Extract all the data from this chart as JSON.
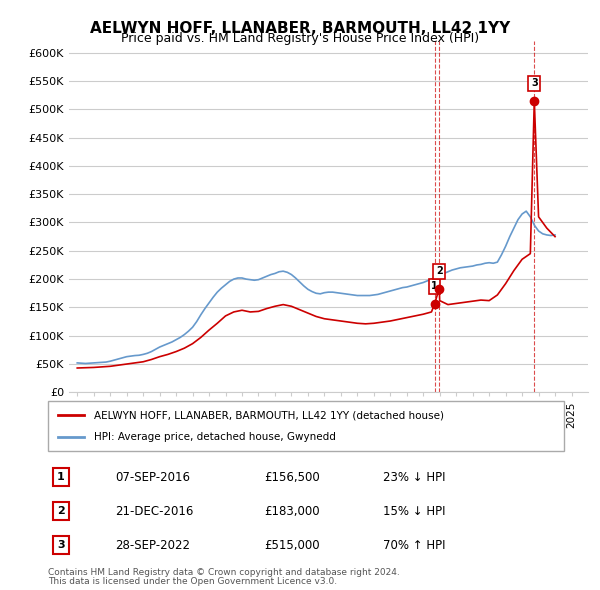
{
  "title": "AELWYN HOFF, LLANABER, BARMOUTH, LL42 1YY",
  "subtitle": "Price paid vs. HM Land Registry's House Price Index (HPI)",
  "ylabel_ticks": [
    "£0",
    "£50K",
    "£100K",
    "£150K",
    "£200K",
    "£250K",
    "£300K",
    "£350K",
    "£400K",
    "£450K",
    "£500K",
    "£550K",
    "£600K"
  ],
  "ytick_values": [
    0,
    50000,
    100000,
    150000,
    200000,
    250000,
    300000,
    350000,
    400000,
    450000,
    500000,
    550000,
    600000
  ],
  "ylim": [
    0,
    620000
  ],
  "xlim_start": 1994.5,
  "xlim_end": 2026.0,
  "sale_marker_color": "#cc0000",
  "hpi_line_color": "#6699cc",
  "background_color": "#ffffff",
  "grid_color": "#cccccc",
  "legend_house": "AELWYN HOFF, LLANABER, BARMOUTH, LL42 1YY (detached house)",
  "legend_hpi": "HPI: Average price, detached house, Gwynedd",
  "transactions": [
    {
      "label": "1",
      "date": "07-SEP-2016",
      "price": 156500,
      "pct": "23%",
      "direction": "↓",
      "year_x": 2016.69
    },
    {
      "label": "2",
      "date": "21-DEC-2016",
      "price": 183000,
      "pct": "15%",
      "direction": "↓",
      "year_x": 2016.97
    },
    {
      "label": "3",
      "date": "28-SEP-2022",
      "price": 515000,
      "pct": "70%",
      "direction": "↑",
      "year_x": 2022.74
    }
  ],
  "footer1": "Contains HM Land Registry data © Crown copyright and database right 2024.",
  "footer2": "This data is licensed under the Open Government Licence v3.0.",
  "hpi_data": {
    "years": [
      1995.0,
      1995.25,
      1995.5,
      1995.75,
      1996.0,
      1996.25,
      1996.5,
      1996.75,
      1997.0,
      1997.25,
      1997.5,
      1997.75,
      1998.0,
      1998.25,
      1998.5,
      1998.75,
      1999.0,
      1999.25,
      1999.5,
      1999.75,
      2000.0,
      2000.25,
      2000.5,
      2000.75,
      2001.0,
      2001.25,
      2001.5,
      2001.75,
      2002.0,
      2002.25,
      2002.5,
      2002.75,
      2003.0,
      2003.25,
      2003.5,
      2003.75,
      2004.0,
      2004.25,
      2004.5,
      2004.75,
      2005.0,
      2005.25,
      2005.5,
      2005.75,
      2006.0,
      2006.25,
      2006.5,
      2006.75,
      2007.0,
      2007.25,
      2007.5,
      2007.75,
      2008.0,
      2008.25,
      2008.5,
      2008.75,
      2009.0,
      2009.25,
      2009.5,
      2009.75,
      2010.0,
      2010.25,
      2010.5,
      2010.75,
      2011.0,
      2011.25,
      2011.5,
      2011.75,
      2012.0,
      2012.25,
      2012.5,
      2012.75,
      2013.0,
      2013.25,
      2013.5,
      2013.75,
      2014.0,
      2014.25,
      2014.5,
      2014.75,
      2015.0,
      2015.25,
      2015.5,
      2015.75,
      2016.0,
      2016.25,
      2016.5,
      2016.75,
      2017.0,
      2017.25,
      2017.5,
      2017.75,
      2018.0,
      2018.25,
      2018.5,
      2018.75,
      2019.0,
      2019.25,
      2019.5,
      2019.75,
      2020.0,
      2020.25,
      2020.5,
      2020.75,
      2021.0,
      2021.25,
      2021.5,
      2021.75,
      2022.0,
      2022.25,
      2022.5,
      2022.75,
      2023.0,
      2023.25,
      2023.5,
      2023.75,
      2024.0
    ],
    "values": [
      52000,
      51500,
      51000,
      51500,
      52000,
      52500,
      53000,
      53500,
      55000,
      57000,
      59000,
      61000,
      63000,
      64000,
      65000,
      65500,
      67000,
      69000,
      72000,
      76000,
      80000,
      83000,
      86000,
      89000,
      93000,
      97000,
      102000,
      108000,
      115000,
      125000,
      137000,
      148000,
      158000,
      168000,
      177000,
      184000,
      190000,
      196000,
      200000,
      202000,
      202000,
      200000,
      199000,
      198000,
      199000,
      202000,
      205000,
      208000,
      210000,
      213000,
      214000,
      212000,
      208000,
      202000,
      195000,
      188000,
      182000,
      178000,
      175000,
      174000,
      176000,
      177000,
      177000,
      176000,
      175000,
      174000,
      173000,
      172000,
      171000,
      171000,
      171000,
      171000,
      172000,
      173000,
      175000,
      177000,
      179000,
      181000,
      183000,
      185000,
      186000,
      188000,
      190000,
      192000,
      194000,
      197000,
      200000,
      203000,
      206000,
      210000,
      213000,
      216000,
      218000,
      220000,
      221000,
      222000,
      223000,
      225000,
      226000,
      228000,
      229000,
      228000,
      230000,
      243000,
      258000,
      275000,
      290000,
      305000,
      315000,
      320000,
      310000,
      295000,
      285000,
      280000,
      278000,
      277000,
      278000
    ]
  },
  "property_data": {
    "years": [
      1995.0,
      1995.5,
      1996.0,
      1996.5,
      1997.0,
      1997.5,
      1998.0,
      1998.5,
      1999.0,
      1999.5,
      2000.0,
      2000.5,
      2001.0,
      2001.5,
      2002.0,
      2002.5,
      2003.0,
      2003.5,
      2004.0,
      2004.5,
      2005.0,
      2005.5,
      2006.0,
      2006.5,
      2007.0,
      2007.5,
      2008.0,
      2008.5,
      2009.0,
      2009.5,
      2010.0,
      2010.5,
      2011.0,
      2011.5,
      2012.0,
      2012.5,
      2013.0,
      2013.5,
      2014.0,
      2014.5,
      2015.0,
      2015.5,
      2016.0,
      2016.5,
      2016.69,
      2016.97,
      2017.0,
      2017.5,
      2018.0,
      2018.5,
      2019.0,
      2019.5,
      2020.0,
      2020.5,
      2021.0,
      2021.5,
      2022.0,
      2022.5,
      2022.74,
      2023.0,
      2023.5,
      2024.0
    ],
    "values": [
      43000,
      43500,
      44000,
      45000,
      46000,
      48000,
      50000,
      52000,
      54000,
      58000,
      63000,
      67000,
      72000,
      78000,
      86000,
      97000,
      110000,
      122000,
      135000,
      142000,
      145000,
      142000,
      143000,
      148000,
      152000,
      155000,
      152000,
      146000,
      140000,
      134000,
      130000,
      128000,
      126000,
      124000,
      122000,
      121000,
      122000,
      124000,
      126000,
      129000,
      132000,
      135000,
      138000,
      142000,
      156500,
      183000,
      162000,
      155000,
      157000,
      159000,
      161000,
      163000,
      162000,
      172000,
      192000,
      215000,
      235000,
      245000,
      515000,
      310000,
      290000,
      275000
    ]
  }
}
